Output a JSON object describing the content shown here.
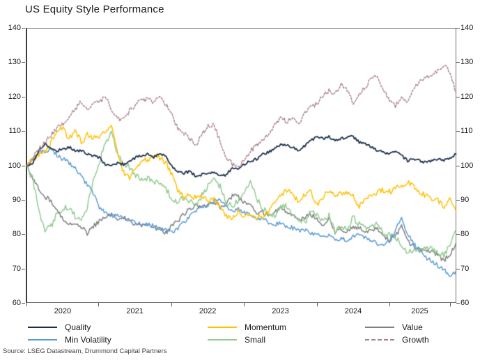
{
  "title": "US Equity Style Performance",
  "source": "Source: LSEG Datastream, Drummond Capital Partners",
  "axes": {
    "y_ticks": [
      140,
      130,
      120,
      110,
      100,
      90,
      80,
      70,
      60
    ],
    "y_min": 60,
    "y_max": 140,
    "x_year_labels": [
      "2020",
      "2021",
      "2022",
      "2023",
      "2024",
      "2025"
    ]
  },
  "legend": {
    "items": [
      "Quality",
      "Min Volatility",
      "Momentum",
      "Small",
      "Value",
      "Growth"
    ]
  },
  "chart_data": {
    "type": "line",
    "title": "US Equity Style Performance",
    "xlabel": "",
    "ylabel": "",
    "ylim": [
      60,
      140
    ],
    "x_unit": "monthly values, Jan 2020 through Dec 2025, all series rebased to 100 at start",
    "x_start": 2020.0,
    "x_step_years": 0.0833,
    "grid": false,
    "legend_position": "bottom",
    "series": [
      {
        "name": "Quality",
        "color": "#1b2f4d",
        "dashed": false,
        "values": [
          100,
          101,
          104.5,
          106.5,
          105,
          104.5,
          105,
          105.5,
          104.5,
          104.5,
          103.5,
          103,
          102.5,
          100.5,
          100,
          101,
          100.5,
          101.5,
          102.5,
          103,
          103.5,
          102.5,
          103.5,
          103,
          100,
          98.5,
          98,
          98.5,
          97,
          97.5,
          98,
          98.5,
          97,
          97.5,
          99.5,
          99.5,
          100.5,
          101.5,
          102,
          103.5,
          104,
          105,
          106.5,
          106,
          105.5,
          104.5,
          106,
          107.5,
          108.5,
          108,
          108.5,
          107.5,
          108,
          108.5,
          108.5,
          107,
          106.5,
          105.5,
          104.5,
          104,
          103.5,
          104.5,
          103,
          101.5,
          102,
          101.5,
          101,
          101.5,
          102,
          101.5,
          102.5,
          103.5
        ]
      },
      {
        "name": "Min Volatility",
        "color": "#5b9bd5",
        "dashed": false,
        "values": [
          100,
          102,
          104.5,
          104,
          105.5,
          103,
          102,
          101,
          99.5,
          97,
          94.5,
          92,
          88,
          86.5,
          85.5,
          86,
          84.5,
          84,
          83.5,
          83.5,
          83,
          82.5,
          82,
          81.5,
          81,
          82,
          83.5,
          85.5,
          87,
          88,
          88.5,
          90,
          90.5,
          88,
          87,
          87.5,
          86.5,
          85.5,
          84.5,
          85,
          83.5,
          83,
          83.5,
          82.5,
          82,
          81,
          81.5,
          80.5,
          80,
          79.5,
          80,
          78.5,
          79,
          78,
          79.5,
          80,
          79,
          78,
          77.5,
          77,
          78,
          81.5,
          85.5,
          80,
          77.5,
          75.5,
          73.5,
          72.5,
          71,
          70,
          67.5,
          69.5
        ]
      },
      {
        "name": "Momentum",
        "color": "#ffc000",
        "dashed": false,
        "values": [
          100,
          102,
          103.5,
          104,
          107,
          110,
          111,
          108,
          110.5,
          107,
          109,
          108.5,
          108.5,
          110,
          112,
          104,
          98,
          96.5,
          99.5,
          101,
          102,
          103,
          102.5,
          101,
          97.5,
          93,
          90.5,
          92,
          90.5,
          91.5,
          89.5,
          91,
          87.5,
          85.5,
          85,
          87,
          85.5,
          86.5,
          85,
          85.5,
          86.5,
          89,
          91.5,
          93,
          91.5,
          90,
          92,
          92.5,
          88.5,
          91,
          93,
          91.5,
          92,
          92.5,
          91,
          88.5,
          90.5,
          91,
          92.5,
          93,
          92.5,
          93.5,
          94.5,
          95.5,
          94,
          92.5,
          91.5,
          90.5,
          90,
          88.5,
          90,
          87
        ]
      },
      {
        "name": "Small",
        "color": "#92ca92",
        "dashed": false,
        "values": [
          100,
          96,
          87,
          81.5,
          82.5,
          86,
          87.5,
          88,
          85.5,
          84,
          88,
          96,
          101,
          107,
          109.5,
          104,
          101,
          99.5,
          97.5,
          96,
          96.5,
          95.5,
          95,
          93.5,
          90.5,
          89.5,
          91,
          90,
          88.5,
          91.5,
          94.5,
          96,
          94,
          89.5,
          88.5,
          90,
          92,
          96,
          90.5,
          88,
          86,
          85.5,
          88,
          88.5,
          86,
          84,
          83.5,
          87,
          85.5,
          84,
          85.5,
          81,
          82.5,
          81.5,
          85,
          83,
          82,
          82.5,
          83.5,
          80.5,
          80,
          79,
          77.5,
          74.5,
          76,
          75.5,
          76,
          76.5,
          74.5,
          74,
          77.5,
          81.5
        ]
      },
      {
        "name": "Value",
        "color": "#7f7f7f",
        "dashed": false,
        "values": [
          100,
          96.5,
          93.5,
          91,
          90,
          87,
          84.5,
          83.5,
          83.5,
          82.5,
          80.5,
          82.5,
          84,
          85.5,
          86,
          84.5,
          85.5,
          84,
          83,
          82.5,
          83,
          82,
          81.5,
          80.5,
          82.5,
          84,
          86,
          87.5,
          88.5,
          88,
          88.5,
          89.5,
          88,
          89,
          91.5,
          91,
          89.5,
          88.5,
          86,
          86.5,
          85.5,
          86.5,
          87.5,
          86.5,
          86,
          84.5,
          85,
          86,
          84.5,
          83,
          84.5,
          80.5,
          82,
          80.5,
          82.5,
          82,
          81,
          81.5,
          82,
          79.5,
          78.5,
          79.5,
          82.5,
          78,
          76.5,
          75.5,
          75.5,
          75,
          74,
          72.5,
          74.5,
          77.5
        ]
      },
      {
        "name": "Growth",
        "color": "#aa7f8b",
        "dashed": true,
        "values": [
          100,
          102.5,
          105,
          107,
          109,
          111,
          112.5,
          114.5,
          116.5,
          119,
          116.5,
          118,
          118.5,
          120.5,
          116,
          113.5,
          113.5,
          116,
          118,
          119,
          119.5,
          118.5,
          120.5,
          118,
          115.5,
          110.5,
          109.5,
          108,
          106,
          109.5,
          111.5,
          112,
          107,
          102.5,
          100.5,
          99.5,
          102,
          104.5,
          106,
          107.5,
          109,
          112,
          114,
          113,
          114.5,
          112.5,
          115.5,
          117.5,
          118,
          120.5,
          122,
          121,
          123.5,
          122,
          118.5,
          121,
          123,
          125.5,
          126,
          122.5,
          119,
          117.5,
          120.5,
          118,
          122.5,
          125,
          125.5,
          126.5,
          127.5,
          129.5,
          127,
          121.5
        ]
      }
    ]
  }
}
